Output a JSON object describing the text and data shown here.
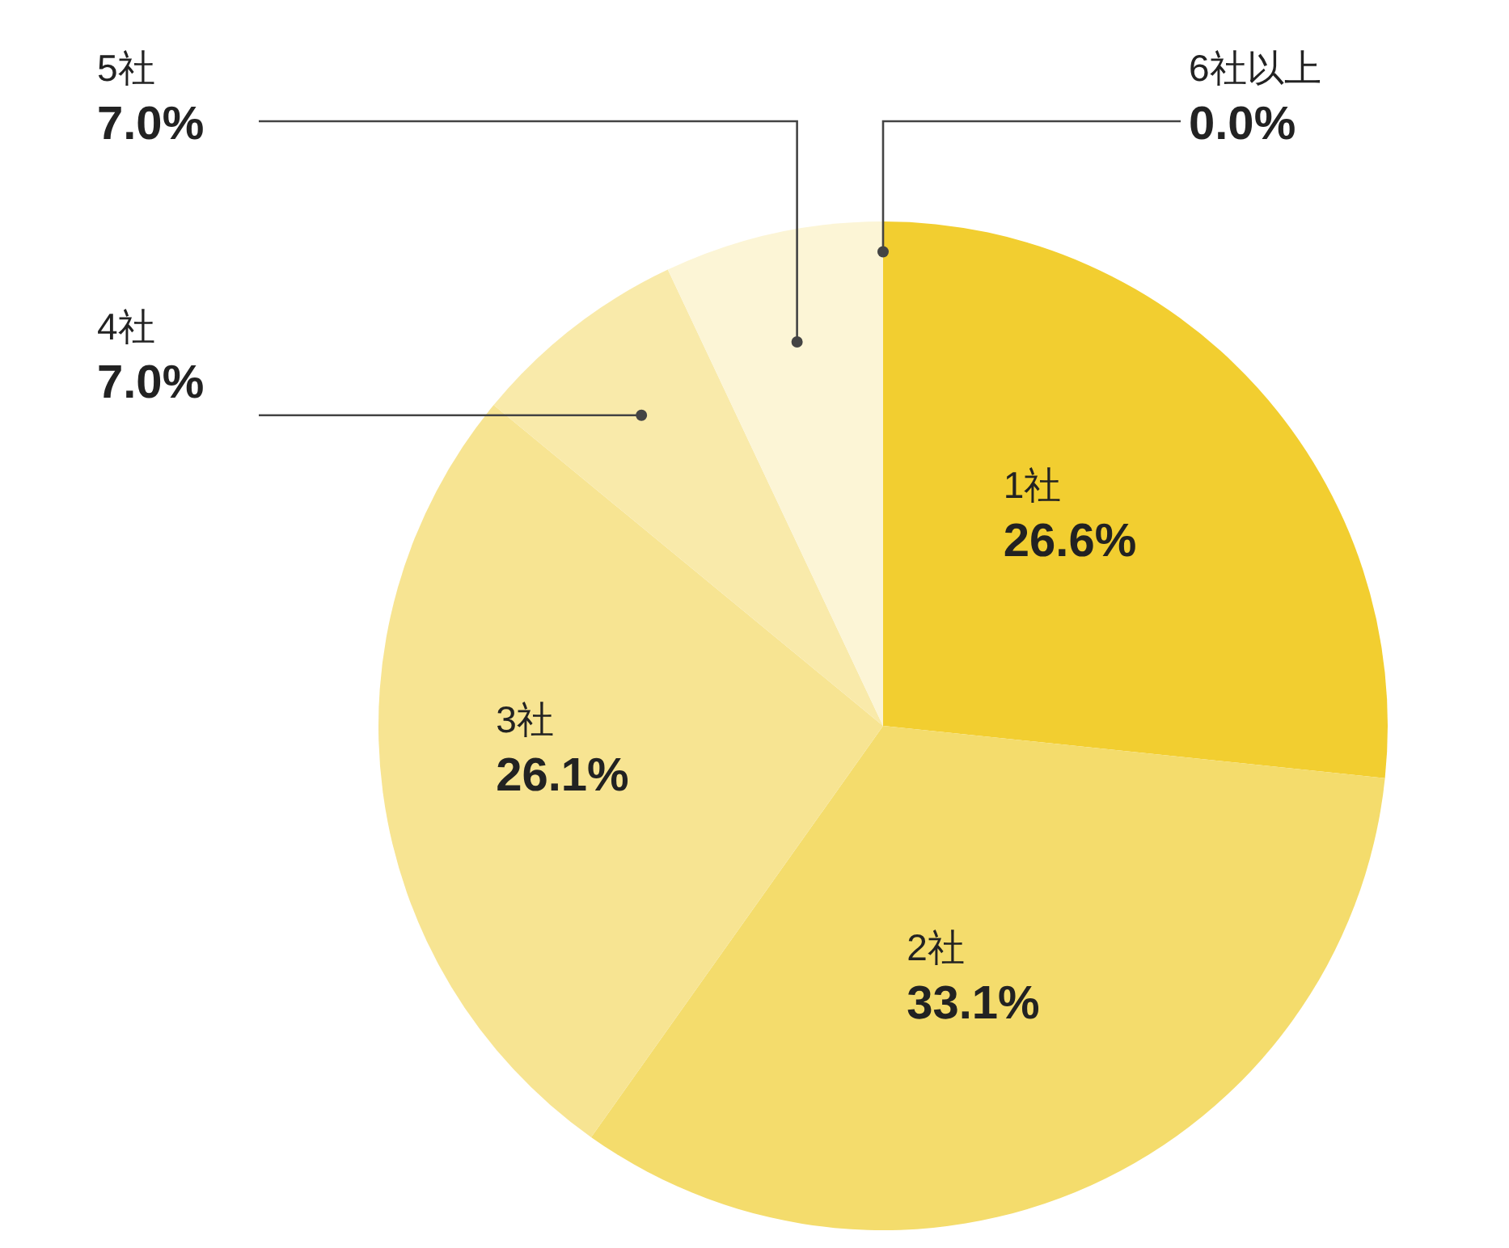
{
  "chart_data": {
    "type": "pie",
    "categories": [
      "1社",
      "2社",
      "3社",
      "4社",
      "5社",
      "6社以上"
    ],
    "values": [
      26.6,
      33.1,
      26.1,
      7.0,
      7.0,
      0.0
    ],
    "value_labels": [
      "26.6%",
      "33.1%",
      "26.1%",
      "7.0%",
      "7.0%",
      "0.0%"
    ],
    "colors": [
      "#f2ce30",
      "#f4dc6c",
      "#f7e492",
      "#f9eaaa",
      "#fcf5d6",
      "#fdf9e6"
    ]
  }
}
